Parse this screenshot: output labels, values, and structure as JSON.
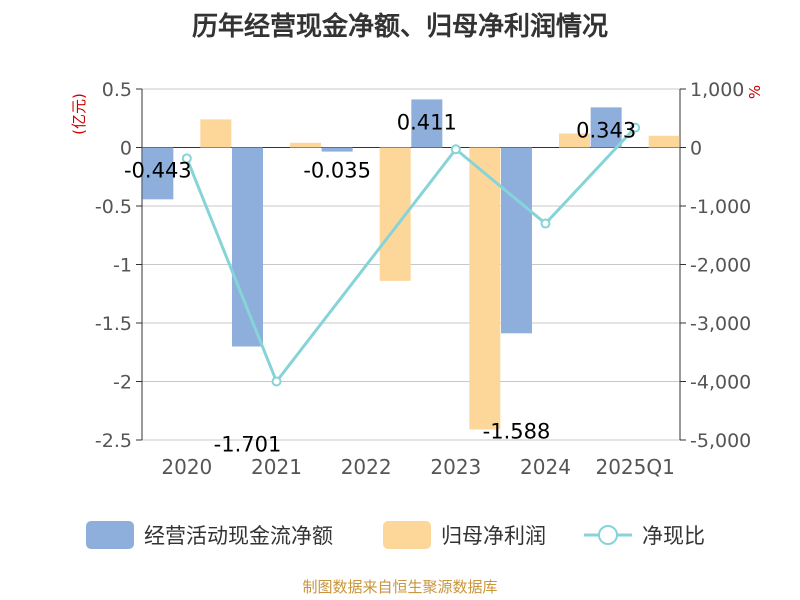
{
  "title": "历年经营现金净额、归母净利润情况",
  "footer": "制图数据来自恒生聚源数据库",
  "chart_data": {
    "type": "bar",
    "title": "历年经营现金净额、归母净利润情况",
    "categories": [
      "2020",
      "2021",
      "2022",
      "2023",
      "2024",
      "2025Q1"
    ],
    "left_axis": {
      "unit_label": "(亿元)",
      "ylim": [
        -2.5,
        0.5
      ],
      "ticks": [
        0.5,
        0,
        -0.5,
        -1,
        -1.5,
        -2,
        -2.5
      ],
      "tick_labels": [
        "0.5",
        "0",
        "-0.5",
        "-1",
        "-1.5",
        "-2",
        "-2.5"
      ]
    },
    "right_axis": {
      "unit_label": "%",
      "ylim": [
        -5000,
        1000
      ],
      "ticks": [
        1000,
        0,
        -1000,
        -2000,
        -3000,
        -4000,
        -5000
      ],
      "tick_labels": [
        "1,000",
        "0",
        "-1,000",
        "-2,000",
        "-3,000",
        "-4,000",
        "-5,000"
      ]
    },
    "series": [
      {
        "name": "经营活动现金流净额",
        "type": "bar",
        "axis": "left",
        "color": "#8eaedc",
        "values": [
          -0.443,
          -1.701,
          -0.035,
          0.411,
          -1.588,
          0.343
        ],
        "labels": [
          "-0.443",
          "-1.701",
          "-0.035",
          "0.411",
          "-1.588",
          "0.343"
        ]
      },
      {
        "name": "归母净利润",
        "type": "bar",
        "axis": "left",
        "color": "#fdd79a",
        "values": [
          0.24,
          0.04,
          -1.14,
          -2.41,
          0.12,
          0.1
        ]
      },
      {
        "name": "净现比",
        "type": "line",
        "axis": "right",
        "color": "#86d4d8",
        "values": [
          -185,
          -4000,
          null,
          -30,
          -1300,
          340
        ]
      }
    ],
    "grid": true,
    "legend_position": "bottom"
  }
}
